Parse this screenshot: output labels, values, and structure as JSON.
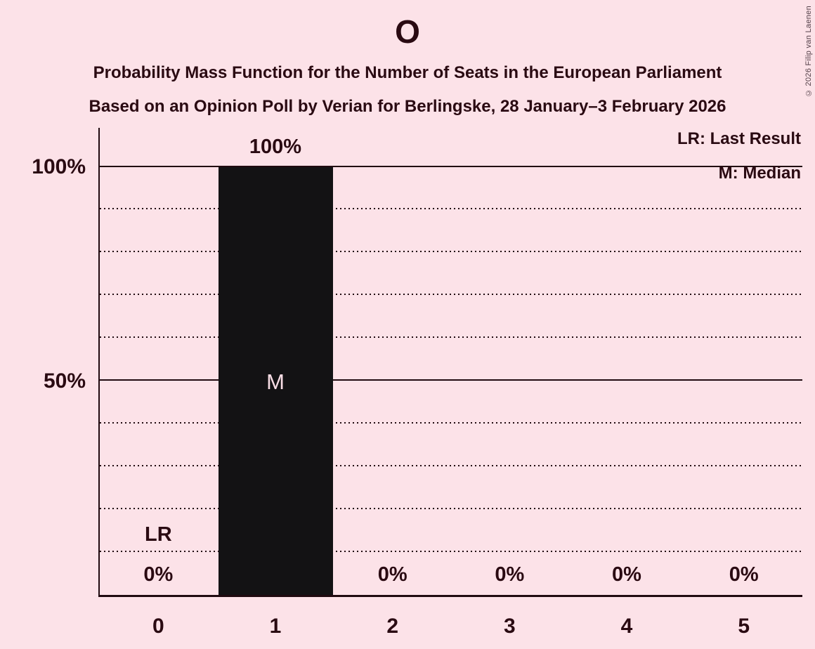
{
  "title": "O",
  "subtitle1": "Probability Mass Function for the Number of Seats in the European Parliament",
  "subtitle2": "Based on an Opinion Poll by Verian for Berlingske, 28 January–3 February 2026",
  "copyright": "© 2026 Filip van Laenen",
  "legend": {
    "lr": "LR: Last Result",
    "m": "M: Median"
  },
  "y_axis": {
    "label_100": "100%",
    "label_50": "50%"
  },
  "annotations": {
    "median": "M",
    "last_result": "LR"
  },
  "chart_data": {
    "type": "bar",
    "title": "O",
    "xlabel": "Number of Seats in the European Parliament",
    "ylabel": "Probability Mass",
    "categories": [
      "0",
      "1",
      "2",
      "3",
      "4",
      "5"
    ],
    "values": [
      0,
      100,
      0,
      0,
      0,
      0
    ],
    "value_labels": [
      "0%",
      "100%",
      "0%",
      "0%",
      "0%",
      "0%"
    ],
    "ylim": [
      0,
      100
    ],
    "ytick_labels": [
      "50%",
      "100%"
    ],
    "gridlines_percent": [
      10,
      20,
      30,
      40,
      50,
      60,
      70,
      80,
      90,
      100
    ],
    "solid_gridlines_percent": [
      50,
      100
    ],
    "median_category": "1",
    "last_result_category": "0",
    "legend_position": "top-right",
    "colors": {
      "background": "#fce2e8",
      "bar": "#131214",
      "text": "#2a0a12",
      "grid": "#200a10",
      "median_label": "#f8dde5"
    }
  }
}
